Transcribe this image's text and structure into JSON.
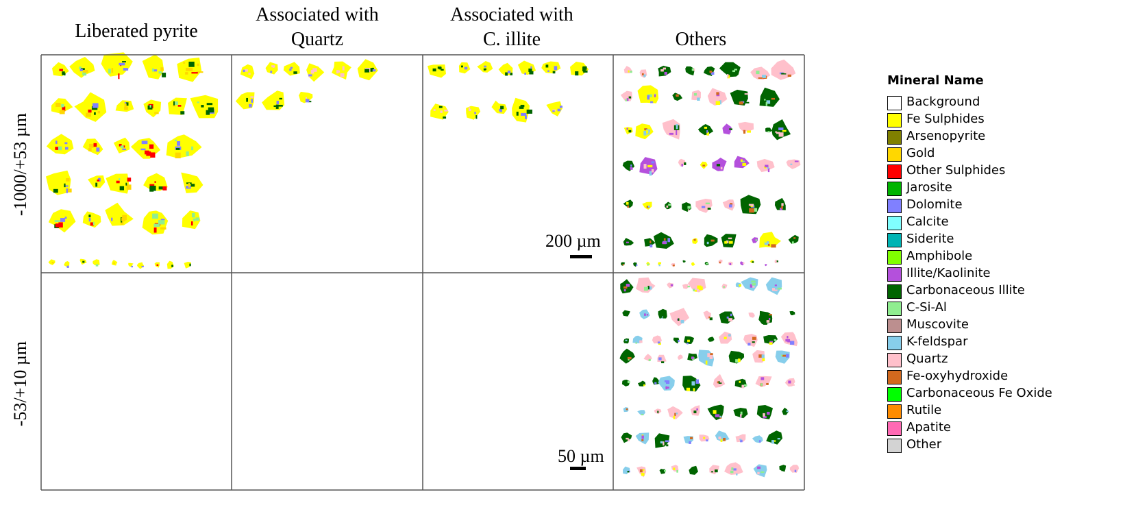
{
  "figure": {
    "columns": [
      "Liberated pyrite",
      "Associated with Quartz",
      "Associated with C. illite",
      "Others"
    ],
    "rows": [
      "-1000/+53 µm",
      "-53/+10 µm"
    ],
    "scale_bars": [
      "200 µm",
      "50 µm"
    ],
    "legend": {
      "title": "Mineral Name",
      "items": [
        {
          "label": "Background",
          "color": "#ffffff"
        },
        {
          "label": "Fe Sulphides",
          "color": "#ffff00"
        },
        {
          "label": "Arsenopyrite",
          "color": "#808000"
        },
        {
          "label": "Gold",
          "color": "#ffd700"
        },
        {
          "label": "Other Sulphides",
          "color": "#ff0000"
        },
        {
          "label": "Jarosite",
          "color": "#00b400"
        },
        {
          "label": "Dolomite",
          "color": "#8080ff"
        },
        {
          "label": "Calcite",
          "color": "#80ffff"
        },
        {
          "label": "Siderite",
          "color": "#00b4b4"
        },
        {
          "label": "Amphibole",
          "color": "#80ff00"
        },
        {
          "label": "Illite/Kaolinite",
          "color": "#b450dc"
        },
        {
          "label": "Carbonaceous Illite",
          "color": "#006400"
        },
        {
          "label": "C-Si-Al",
          "color": "#90ee90"
        },
        {
          "label": "Muscovite",
          "color": "#bc8f8f"
        },
        {
          "label": "K-feldspar",
          "color": "#87ceeb"
        },
        {
          "label": "Quartz",
          "color": "#ffc0cb"
        },
        {
          "label": "Fe-oxyhydroxide",
          "color": "#d2691e"
        },
        {
          "label": "Carbonaceous Fe Oxide",
          "color": "#00ff00"
        },
        {
          "label": "Rutile",
          "color": "#ff8c00"
        },
        {
          "label": "Apatite",
          "color": "#ff69b4"
        },
        {
          "label": "Other",
          "color": "#d3d3d3"
        }
      ]
    }
  }
}
